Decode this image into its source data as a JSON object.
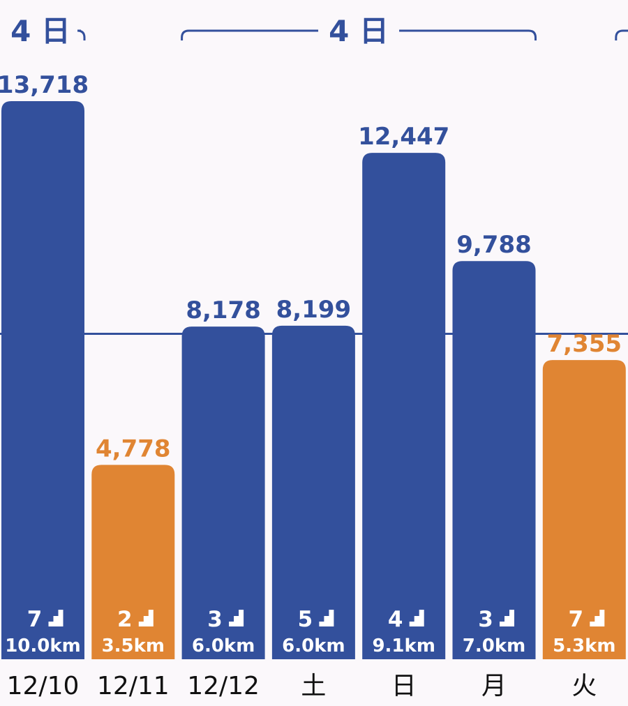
{
  "chart_data": {
    "type": "bar",
    "categories": [
      "12/10",
      "12/11",
      "12/12",
      "土",
      "日",
      "月",
      "火"
    ],
    "values": [
      13718,
      4778,
      8178,
      8199,
      12447,
      9788,
      7355
    ],
    "value_labels": [
      "13,718",
      "4,778",
      "8,178",
      "8,199",
      "12,447",
      "9,788",
      "7,355"
    ],
    "stairs": [
      "7",
      "2",
      "3",
      "5",
      "4",
      "3",
      "7"
    ],
    "distances": [
      "10.0km",
      "3.5km",
      "6.0km",
      "6.0km",
      "9.1km",
      "7.0km",
      "5.3km"
    ],
    "goal_met": [
      true,
      false,
      true,
      true,
      true,
      true,
      false
    ],
    "goal_line": 8000,
    "ylim": [
      0,
      15000
    ],
    "streaks": [
      {
        "label": "4 日",
        "from": 0,
        "to": 0,
        "open_left": true
      },
      {
        "label": "4 日",
        "from": 2,
        "to": 5
      },
      {
        "label": "",
        "from": 6,
        "to": 6,
        "open_right": true
      }
    ],
    "colors": {
      "met": "#33509c",
      "not_met": "#e08533",
      "goal_line": "#33509c",
      "background": "#fbf8fb"
    },
    "stairs_icon": "stairs-icon",
    "title": "",
    "xlabel": "",
    "ylabel": ""
  }
}
